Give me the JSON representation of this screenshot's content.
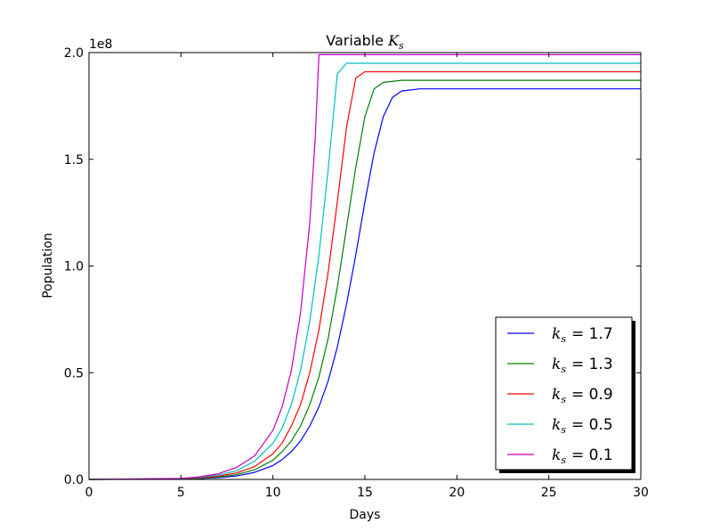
{
  "chart_data": {
    "type": "line",
    "title": "Variable",
    "title_symbol": "K",
    "title_symbol_sub": "s",
    "xlabel": "Days",
    "ylabel": "Population",
    "y_offset_label": "1e8",
    "xlim": [
      0,
      30
    ],
    "ylim": [
      0,
      2.0
    ],
    "y_scale_note": "values in units of 1e8",
    "x_ticks": [
      "0",
      "5",
      "10",
      "15",
      "20",
      "25",
      "30"
    ],
    "y_ticks": [
      "0.0",
      "0.5",
      "1.0",
      "1.5",
      "2.0"
    ],
    "grid": false,
    "legend_position": "lower right",
    "legend_symbol": "k",
    "legend_symbol_sub": "s",
    "series": [
      {
        "name": "= 1.7",
        "color": "#0000ff",
        "x": [
          0,
          5,
          6,
          7,
          8,
          9,
          10,
          10.5,
          11,
          11.5,
          12,
          12.5,
          13,
          13.5,
          14,
          14.5,
          15,
          15.5,
          16,
          16.5,
          17,
          18,
          20,
          30
        ],
        "y": [
          0.0,
          0.002,
          0.004,
          0.008,
          0.016,
          0.033,
          0.065,
          0.093,
          0.13,
          0.18,
          0.25,
          0.34,
          0.46,
          0.62,
          0.82,
          1.05,
          1.3,
          1.53,
          1.7,
          1.79,
          1.82,
          1.83,
          1.83,
          1.83
        ]
      },
      {
        "name": "= 1.3",
        "color": "#008000",
        "x": [
          0,
          5,
          6,
          7,
          8,
          9,
          10,
          10.5,
          11,
          11.5,
          12,
          12.5,
          13,
          13.5,
          14,
          14.5,
          15,
          15.5,
          16,
          17,
          20,
          30
        ],
        "y": [
          0.0,
          0.002,
          0.005,
          0.011,
          0.022,
          0.045,
          0.09,
          0.13,
          0.18,
          0.25,
          0.35,
          0.48,
          0.66,
          0.9,
          1.18,
          1.46,
          1.7,
          1.83,
          1.86,
          1.87,
          1.87,
          1.87
        ]
      },
      {
        "name": "= 0.9",
        "color": "#ff0000",
        "x": [
          0,
          5,
          6,
          7,
          8,
          9,
          10,
          10.5,
          11,
          11.5,
          12,
          12.5,
          13,
          13.5,
          14,
          14.5,
          15,
          16,
          20,
          30
        ],
        "y": [
          0.0,
          0.003,
          0.007,
          0.015,
          0.03,
          0.06,
          0.12,
          0.17,
          0.25,
          0.35,
          0.5,
          0.7,
          0.97,
          1.3,
          1.65,
          1.88,
          1.91,
          1.91,
          1.91,
          1.91
        ]
      },
      {
        "name": "= 0.5",
        "color": "#00bfbf",
        "x": [
          0,
          5,
          6,
          7,
          8,
          9,
          10,
          10.5,
          11,
          11.5,
          12,
          12.5,
          13,
          13.5,
          14,
          15,
          20,
          30
        ],
        "y": [
          0.0,
          0.004,
          0.01,
          0.02,
          0.04,
          0.085,
          0.17,
          0.24,
          0.35,
          0.51,
          0.74,
          1.05,
          1.45,
          1.9,
          1.95,
          1.95,
          1.95,
          1.95
        ]
      },
      {
        "name": "= 0.1",
        "color": "#bf00bf",
        "x": [
          0,
          5,
          6,
          7,
          8,
          9,
          10,
          10.5,
          11,
          11.5,
          12,
          12.3,
          12.5,
          13,
          15,
          20,
          30
        ],
        "y": [
          0.0,
          0.005,
          0.012,
          0.026,
          0.055,
          0.11,
          0.23,
          0.34,
          0.51,
          0.78,
          1.2,
          1.6,
          1.99,
          1.99,
          1.99,
          1.99,
          1.99
        ]
      }
    ]
  }
}
